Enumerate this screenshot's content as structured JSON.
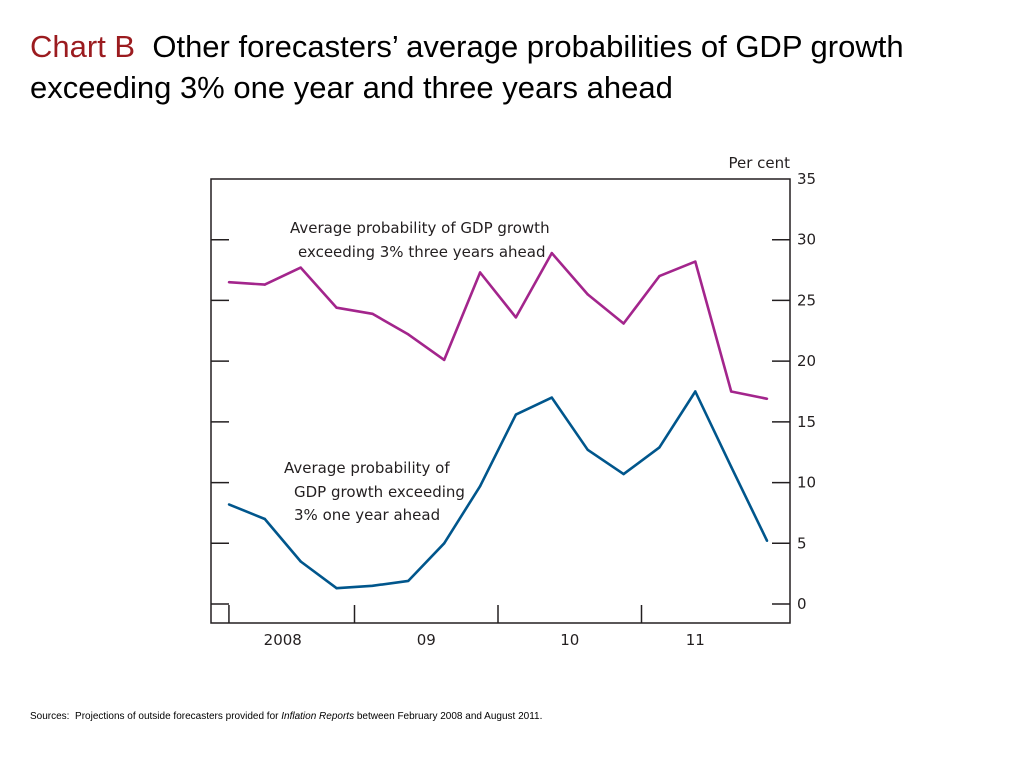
{
  "title": {
    "prefix": "Chart B",
    "text": "Other forecasters’ average probabilities of GDP growth exceeding 3% one year and three years ahead"
  },
  "sources": {
    "label": "Sources:",
    "text_before": "Projections of outside forecasters provided for",
    "italic": "Inflation Reports",
    "text_after": "between February 2008 and August 2011."
  },
  "chart_data": {
    "type": "line",
    "ylabel": "Per cent",
    "ylim": [
      0,
      35
    ],
    "yticks": [
      0,
      5,
      10,
      15,
      20,
      25,
      30,
      35
    ],
    "xlim": [
      2008.0,
      2012.0
    ],
    "x_major_ticks": [
      2008,
      2009,
      2010,
      2011
    ],
    "x_tick_labels": [
      {
        "label": "2008",
        "at": 2008.5
      },
      {
        "label": "09",
        "at": 2009.5
      },
      {
        "label": "10",
        "at": 2010.5
      },
      {
        "label": "11",
        "at": 2011.375
      }
    ],
    "x": [
      2008.125,
      2008.375,
      2008.625,
      2008.875,
      2009.125,
      2009.375,
      2009.625,
      2009.875,
      2010.125,
      2010.375,
      2010.625,
      2010.875,
      2011.125,
      2011.375,
      2011.625,
      2011.875
    ],
    "series": [
      {
        "key": "three_years",
        "color": "#a3258c",
        "annotation": [
          "Average probability of GDP growth",
          "exceeding 3% three years ahead"
        ],
        "values": [
          26.5,
          26.3,
          27.7,
          24.4,
          23.9,
          22.2,
          20.1,
          27.3,
          23.6,
          28.9,
          25.5,
          23.1,
          27.0,
          28.2,
          17.5,
          16.9
        ]
      },
      {
        "key": "one_year",
        "color": "#00568c",
        "annotation": [
          "Average probability of",
          "GDP growth exceeding",
          "3% one year ahead"
        ],
        "values": [
          8.2,
          7.0,
          3.5,
          1.3,
          1.5,
          1.9,
          5.0,
          9.7,
          15.6,
          17.0,
          12.7,
          10.7,
          12.9,
          17.5,
          11.3,
          5.2
        ]
      }
    ],
    "grid": false,
    "legend": "none"
  }
}
